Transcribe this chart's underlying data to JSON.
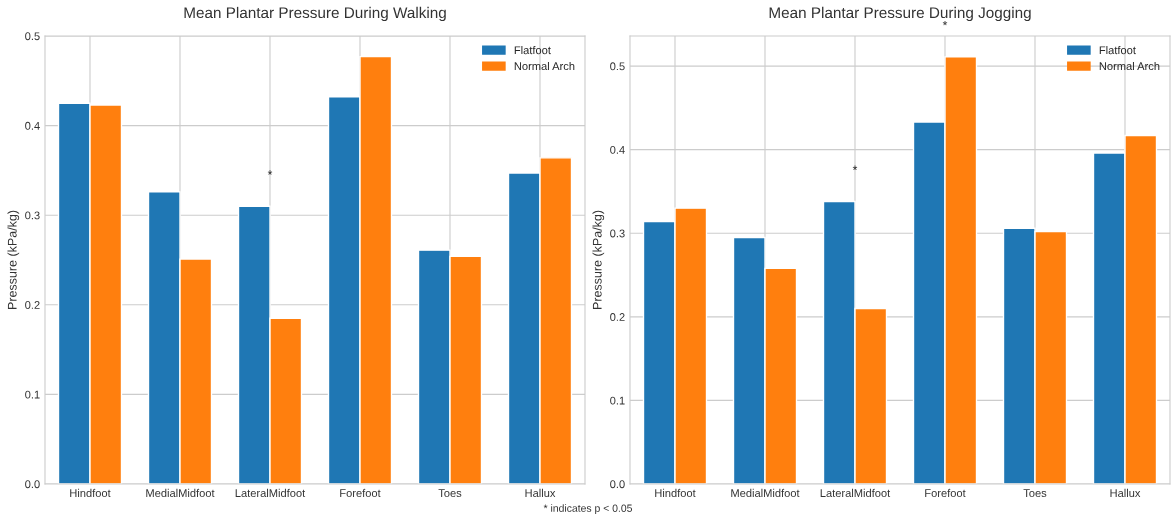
{
  "chart_data": [
    {
      "type": "bar",
      "title": "Mean Plantar Pressure During Walking",
      "ylabel": "Pressure (kPa/kg)",
      "categories": [
        "Hindfoot",
        "MedialMidfoot",
        "LateralMidfoot",
        "Forefoot",
        "Toes",
        "Hallux"
      ],
      "series": [
        {
          "name": "Flatfoot",
          "color": "#1f77b4",
          "values": [
            0.425,
            0.326,
            0.31,
            0.432,
            0.261,
            0.347
          ]
        },
        {
          "name": "Normal Arch",
          "color": "#ff7f0e",
          "values": [
            0.423,
            0.251,
            0.185,
            0.477,
            0.254,
            0.364
          ]
        }
      ],
      "ylim": [
        0,
        0.5
      ],
      "yticks": [
        {
          "value": 0,
          "label": "0.0"
        },
        0.1,
        0.2,
        0.3,
        0.4,
        0.5
      ],
      "grid": true,
      "legend": "top right",
      "annotations": [
        {
          "text": "*",
          "x": "LateralMidfoot",
          "y": 0.31
        }
      ]
    },
    {
      "type": "bar",
      "title": "Mean Plantar Pressure During Jogging",
      "ylabel": "Pressure (kPa/kg)",
      "categories": [
        "Hindfoot",
        "MedialMidfoot",
        "LateralMidfoot",
        "Forefoot",
        "Toes",
        "Hallux"
      ],
      "series": [
        {
          "name": "Flatfoot",
          "color": "#1f77b4",
          "values": [
            0.314,
            0.295,
            0.338,
            0.433,
            0.306,
            0.396
          ]
        },
        {
          "name": "Normal Arch",
          "color": "#ff7f0e",
          "values": [
            0.33,
            0.258,
            0.21,
            0.511,
            0.302,
            0.417
          ]
        }
      ],
      "ylim": [
        0,
        0.536
      ],
      "yticks": [
        {
          "value": 0,
          "label": "0.0"
        },
        0.1,
        0.2,
        0.3,
        0.4,
        0.5
      ],
      "grid": true,
      "legend": "top right",
      "annotations": [
        {
          "text": "*",
          "x": "LateralMidfoot",
          "y": 0.338
        },
        {
          "text": "*",
          "x": "Forefoot",
          "y": 0.511
        },
        "* indicates p < 0.05"
      ]
    }
  ]
}
